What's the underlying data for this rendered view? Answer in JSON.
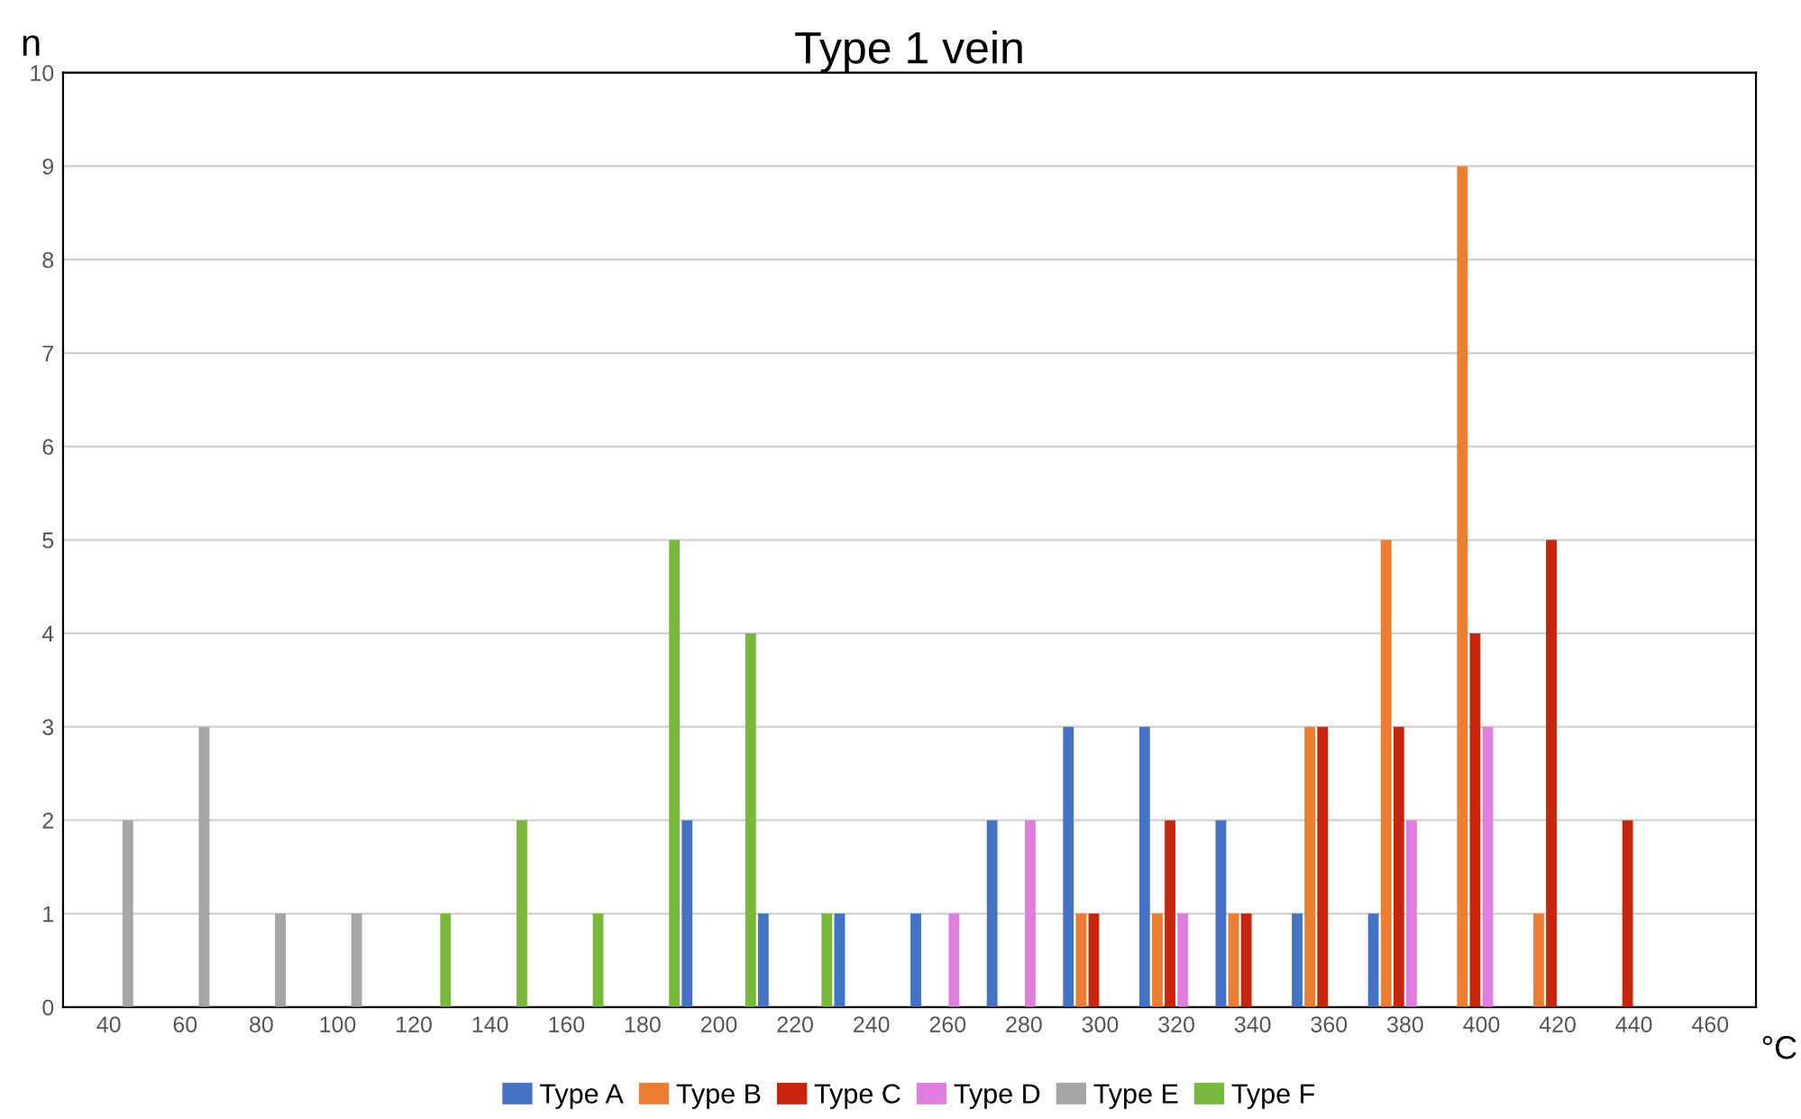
{
  "chart_data": {
    "type": "bar",
    "title": "Type 1 vein",
    "xlabel": "°C",
    "ylabel": "n",
    "categories": [
      "40",
      "60",
      "80",
      "100",
      "120",
      "140",
      "160",
      "180",
      "200",
      "220",
      "240",
      "260",
      "280",
      "300",
      "320",
      "340",
      "360",
      "380",
      "400",
      "420",
      "440",
      "460"
    ],
    "series": [
      {
        "name": "Type A",
        "color": "#4472c4",
        "values": [
          0,
          0,
          0,
          0,
          0,
          0,
          0,
          0,
          2,
          1,
          1,
          1,
          2,
          3,
          3,
          2,
          1,
          1,
          0,
          0,
          0,
          0
        ]
      },
      {
        "name": "Type B",
        "color": "#ed7d31",
        "values": [
          0,
          0,
          0,
          0,
          0,
          0,
          0,
          0,
          0,
          0,
          0,
          0,
          0,
          1,
          1,
          1,
          3,
          5,
          9,
          1,
          0,
          0
        ]
      },
      {
        "name": "Type C",
        "color": "#c8260c",
        "values": [
          0,
          0,
          0,
          0,
          0,
          0,
          0,
          0,
          0,
          0,
          0,
          0,
          0,
          1,
          2,
          1,
          3,
          3,
          4,
          5,
          2,
          0
        ]
      },
      {
        "name": "Type D",
        "color": "#e07ee0",
        "values": [
          0,
          0,
          0,
          0,
          0,
          0,
          0,
          0,
          0,
          0,
          0,
          1,
          2,
          0,
          1,
          0,
          0,
          2,
          3,
          0,
          0,
          0
        ]
      },
      {
        "name": "Type E",
        "color": "#a5a5a5",
        "values": [
          2,
          3,
          1,
          1,
          0,
          0,
          0,
          0,
          0,
          0,
          0,
          0,
          0,
          0,
          0,
          0,
          0,
          0,
          0,
          0,
          0,
          0
        ]
      },
      {
        "name": "Type F",
        "color": "#78b83a",
        "values": [
          0,
          0,
          0,
          0,
          1,
          2,
          1,
          5,
          4,
          1,
          0,
          0,
          0,
          0,
          0,
          0,
          0,
          0,
          0,
          0,
          0,
          0
        ]
      }
    ],
    "ylim": [
      0,
      10
    ],
    "yticks": [
      0,
      1,
      2,
      3,
      4,
      5,
      6,
      7,
      8,
      9,
      10
    ],
    "grid": "y",
    "legend": "bottom"
  }
}
